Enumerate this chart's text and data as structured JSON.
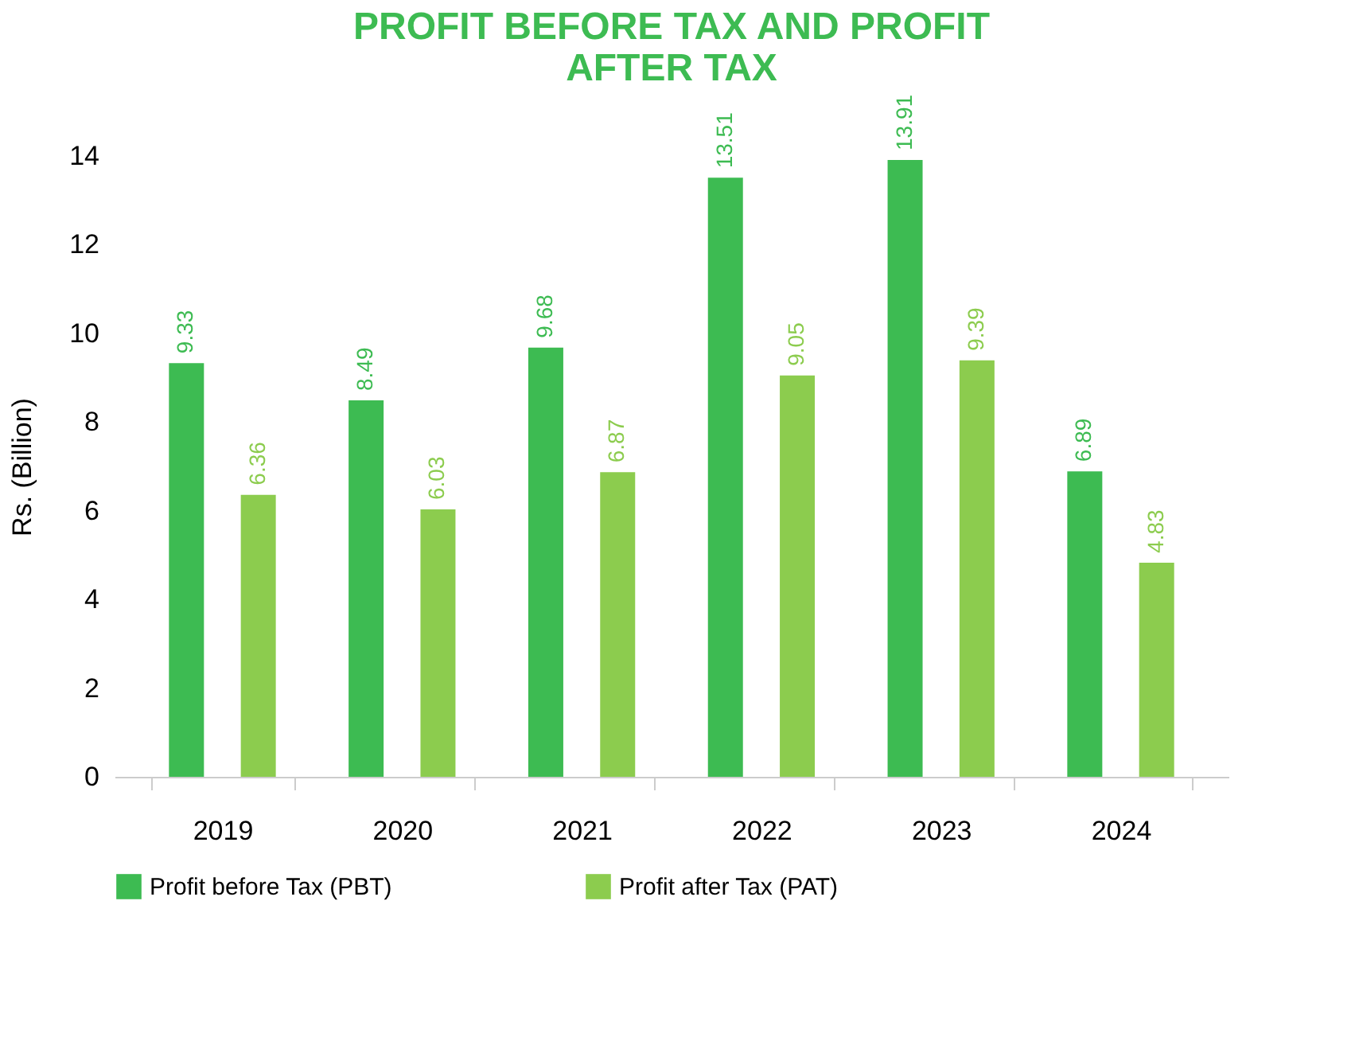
{
  "chart_data": {
    "type": "bar",
    "title": "PROFIT BEFORE TAX AND PROFIT\nAFTER TAX",
    "ylabel": "Rs. (Billion)",
    "categories": [
      "2019",
      "2020",
      "2021",
      "2022",
      "2023",
      "2024"
    ],
    "series": [
      {
        "name": "Profit before Tax (PBT)",
        "color": "#3dbb52",
        "values": [
          9.33,
          8.49,
          9.68,
          13.51,
          13.91,
          6.89
        ]
      },
      {
        "name": "Profit after Tax (PAT)",
        "color": "#8ccc4e",
        "values": [
          6.36,
          6.03,
          6.87,
          9.05,
          9.39,
          4.83
        ]
      }
    ],
    "ylim": [
      0,
      14
    ],
    "yticks": [
      0,
      2,
      4,
      6,
      8,
      10,
      12,
      14
    ],
    "grid": false,
    "legend": "bottom",
    "data_labels": true
  }
}
